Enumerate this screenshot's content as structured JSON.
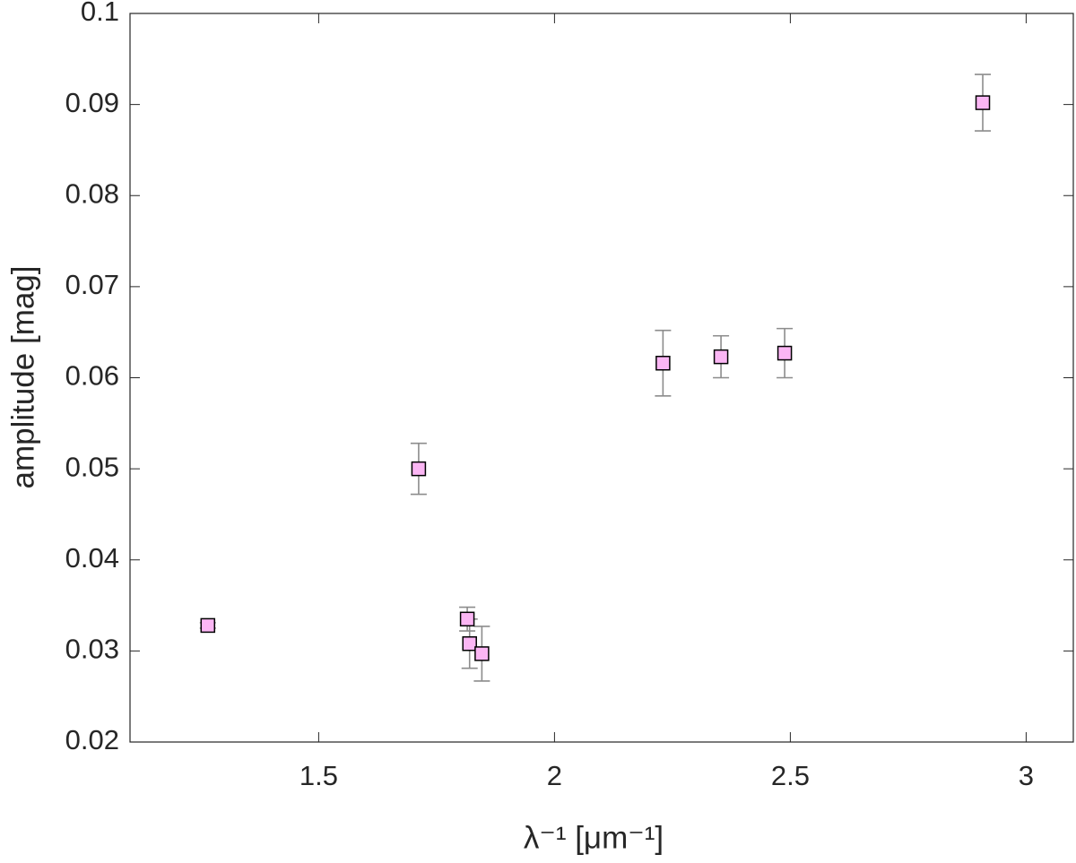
{
  "chart_data": {
    "type": "scatter",
    "x_label": "λ⁻¹  [μm⁻¹]",
    "y_label": "amplitude  [mag]",
    "x": [
      1.265,
      1.712,
      1.815,
      1.82,
      1.846,
      2.23,
      2.353,
      2.488,
      2.908
    ],
    "values": [
      0.0328,
      0.05,
      0.0335,
      0.0308,
      0.0297,
      0.0616,
      0.0623,
      0.0627,
      0.0902
    ],
    "errors": [
      0.0003,
      0.0028,
      0.0013,
      0.0027,
      0.003,
      0.0036,
      0.0023,
      0.0027,
      0.0031
    ],
    "color": "#fbb6f4",
    "marker_edge_color": "#000000",
    "error_color": "#8c8c8c",
    "xlim": [
      1.1,
      3.1
    ],
    "xticks": [
      1.5,
      2,
      2.5,
      3
    ],
    "ylim": [
      0.02,
      0.1
    ],
    "yticks": [
      0.02,
      0.03,
      0.04,
      0.05,
      0.06,
      0.07,
      0.08,
      0.09,
      0.1
    ],
    "grid": false
  }
}
